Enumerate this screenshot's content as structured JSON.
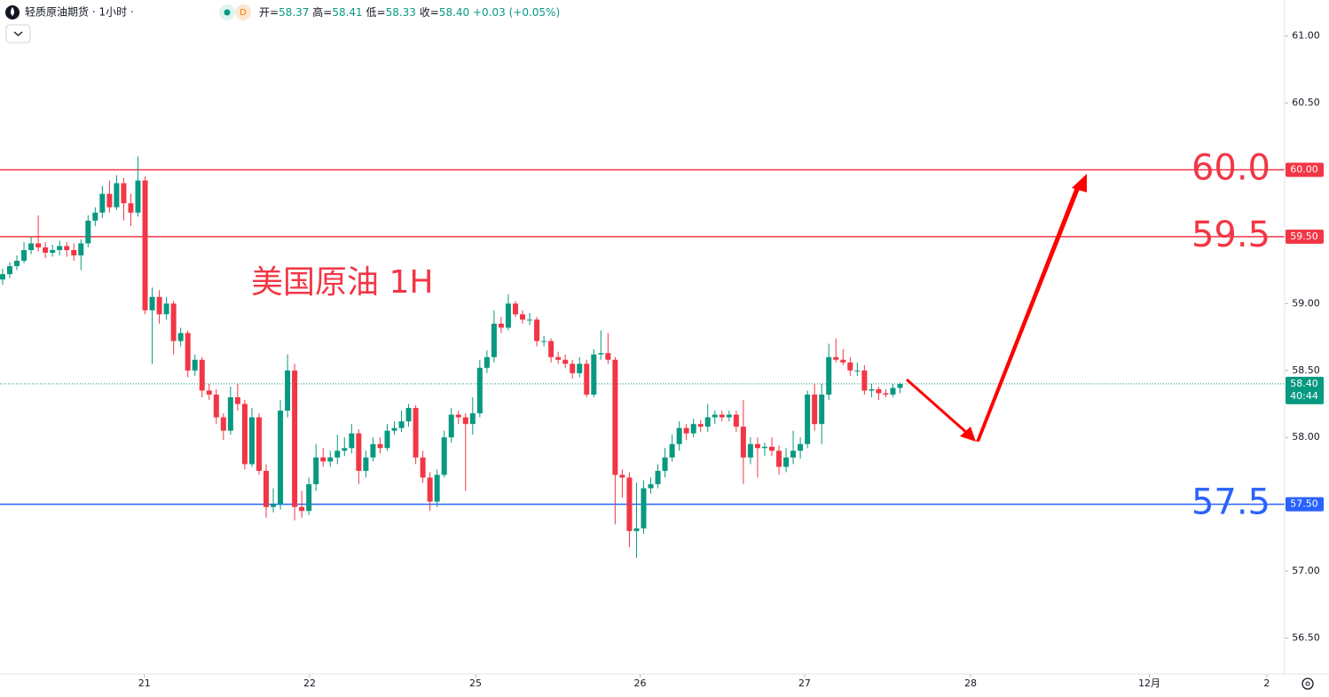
{
  "header": {
    "title": "轻质原油期货 · 1小时 ·",
    "badge": "D",
    "open_label": "开=",
    "open": "58.37",
    "high_label": "高=",
    "high": "58.41",
    "low_label": "低=",
    "low": "58.33",
    "close_label": "收=",
    "close": "58.40",
    "change": "+0.03 (+0.05%)"
  },
  "chart_data": {
    "type": "candlestick",
    "annotation": "美国原油 1H",
    "up_color": "#089981",
    "down_color": "#f23645",
    "ylim": [
      56.232,
      61.269
    ],
    "yticks": [
      {
        "value": 61,
        "label": "61.00"
      },
      {
        "value": 60.5,
        "label": "60.50"
      },
      {
        "value": 59,
        "label": "59.00"
      },
      {
        "value": 58.5,
        "label": "58.50"
      },
      {
        "value": 58,
        "label": "58.00"
      },
      {
        "value": 57,
        "label": "57.00"
      },
      {
        "value": 56.5,
        "label": "56.50"
      }
    ],
    "xlim": [
      -0.37,
      180
    ],
    "xticks": [
      {
        "value": 19.9,
        "label": "21"
      },
      {
        "value": 43.1,
        "label": "22"
      },
      {
        "value": 66.4,
        "label": "25"
      },
      {
        "value": 89.5,
        "label": "26"
      },
      {
        "value": 112.6,
        "label": "27"
      },
      {
        "value": 135.9,
        "label": "28"
      },
      {
        "value": 161,
        "label": "12月"
      },
      {
        "value": 177.5,
        "label": "2"
      }
    ],
    "levels": [
      {
        "value": 60,
        "label": "60.0",
        "axis_label": "60.00",
        "color": "#f23645"
      },
      {
        "value": 59.5,
        "label": "59.5",
        "axis_label": "59.50",
        "color": "#f23645"
      },
      {
        "value": 57.5,
        "label": "57.5",
        "axis_label": "57.50",
        "color": "#2962ff"
      }
    ],
    "last_price": {
      "value": 58.4,
      "label": "58.40",
      "countdown": "40:44",
      "color": "#089981"
    },
    "ohlc": [
      [
        59.18,
        59.26,
        59.14,
        59.22
      ],
      [
        59.22,
        59.31,
        59.19,
        59.28
      ],
      [
        59.28,
        59.36,
        59.25,
        59.32
      ],
      [
        59.32,
        59.46,
        59.3,
        59.4
      ],
      [
        59.4,
        59.5,
        59.37,
        59.45
      ],
      [
        59.45,
        59.66,
        59.39,
        59.42
      ],
      [
        59.42,
        59.46,
        59.34,
        59.38
      ],
      [
        59.38,
        59.44,
        59.35,
        59.4
      ],
      [
        59.4,
        59.47,
        59.36,
        59.43
      ],
      [
        59.43,
        59.46,
        59.35,
        59.4
      ],
      [
        59.4,
        59.45,
        59.32,
        59.36
      ],
      [
        59.36,
        59.48,
        59.25,
        59.45
      ],
      [
        59.45,
        59.66,
        59.42,
        59.62
      ],
      [
        59.62,
        59.72,
        59.58,
        59.68
      ],
      [
        59.68,
        59.88,
        59.64,
        59.82
      ],
      [
        59.82,
        59.92,
        59.68,
        59.72
      ],
      [
        59.72,
        59.96,
        59.7,
        59.9
      ],
      [
        59.9,
        59.94,
        59.62,
        59.75
      ],
      [
        59.75,
        59.82,
        59.58,
        59.68
      ],
      [
        59.68,
        60.1,
        59.65,
        59.92
      ],
      [
        59.92,
        59.95,
        58.92,
        58.95
      ],
      [
        58.95,
        59.12,
        58.55,
        59.05
      ],
      [
        59.05,
        59.1,
        58.85,
        58.92
      ],
      [
        58.92,
        59.05,
        58.88,
        59
      ],
      [
        59,
        59.02,
        58.62,
        58.72
      ],
      [
        58.72,
        58.82,
        58.68,
        58.78
      ],
      [
        58.78,
        58.8,
        58.45,
        58.5
      ],
      [
        58.5,
        58.62,
        58.46,
        58.58
      ],
      [
        58.58,
        58.6,
        58.3,
        58.35
      ],
      [
        58.35,
        58.4,
        58.28,
        58.32
      ],
      [
        58.32,
        58.36,
        58.1,
        58.15
      ],
      [
        58.15,
        58.18,
        57.98,
        58.05
      ],
      [
        58.05,
        58.38,
        58.02,
        58.3
      ],
      [
        58.3,
        58.4,
        58.2,
        58.25
      ],
      [
        58.25,
        58.28,
        57.76,
        57.8
      ],
      [
        57.8,
        58.22,
        57.78,
        58.15
      ],
      [
        58.15,
        58.18,
        57.72,
        57.75
      ],
      [
        57.75,
        57.8,
        57.4,
        57.48
      ],
      [
        57.48,
        57.62,
        57.44,
        57.5
      ],
      [
        57.5,
        58.28,
        57.46,
        58.2
      ],
      [
        58.2,
        58.62,
        58.15,
        58.5
      ],
      [
        58.5,
        58.55,
        57.38,
        57.48
      ],
      [
        57.48,
        57.6,
        57.4,
        57.45
      ],
      [
        57.45,
        57.7,
        57.42,
        57.65
      ],
      [
        57.65,
        57.95,
        57.6,
        57.85
      ],
      [
        57.85,
        57.92,
        57.78,
        57.82
      ],
      [
        57.82,
        57.9,
        57.78,
        57.85
      ],
      [
        57.85,
        58.02,
        57.8,
        57.9
      ],
      [
        57.9,
        58,
        57.86,
        57.92
      ],
      [
        57.92,
        58.1,
        57.88,
        58.03
      ],
      [
        58.03,
        58.06,
        57.65,
        57.75
      ],
      [
        57.75,
        57.9,
        57.7,
        57.85
      ],
      [
        57.85,
        58,
        57.82,
        57.95
      ],
      [
        57.95,
        58,
        57.88,
        57.92
      ],
      [
        57.92,
        58.1,
        57.9,
        58.05
      ],
      [
        58.05,
        58.12,
        58.02,
        58.07
      ],
      [
        58.07,
        58.2,
        58.04,
        58.12
      ],
      [
        58.12,
        58.25,
        58.08,
        58.22
      ],
      [
        58.22,
        58.24,
        57.8,
        57.85
      ],
      [
        57.85,
        57.9,
        57.66,
        57.7
      ],
      [
        57.7,
        57.74,
        57.45,
        57.52
      ],
      [
        57.52,
        57.76,
        57.48,
        57.72
      ],
      [
        57.72,
        58.05,
        57.7,
        58
      ],
      [
        58,
        58.22,
        57.96,
        58.17
      ],
      [
        58.17,
        58.2,
        58.1,
        58.15
      ],
      [
        58.15,
        58.18,
        57.6,
        58.1
      ],
      [
        58.1,
        58.3,
        58.02,
        58.18
      ],
      [
        58.18,
        58.58,
        58.15,
        58.52
      ],
      [
        58.52,
        58.65,
        58.48,
        58.6
      ],
      [
        58.6,
        58.95,
        58.56,
        58.85
      ],
      [
        58.85,
        58.9,
        58.78,
        58.82
      ],
      [
        58.82,
        59.07,
        58.8,
        59
      ],
      [
        59,
        59.02,
        58.9,
        58.92
      ],
      [
        58.92,
        58.95,
        58.85,
        58.88
      ],
      [
        58.88,
        58.93,
        58.84,
        58.88
      ],
      [
        58.88,
        58.9,
        58.68,
        58.72
      ],
      [
        58.72,
        58.76,
        58.68,
        58.72
      ],
      [
        58.72,
        58.74,
        58.56,
        58.6
      ],
      [
        58.6,
        58.64,
        58.55,
        58.58
      ],
      [
        58.58,
        58.62,
        58.52,
        58.55
      ],
      [
        58.55,
        58.58,
        58.44,
        58.48
      ],
      [
        58.48,
        58.6,
        58.45,
        58.55
      ],
      [
        58.55,
        58.58,
        58.3,
        58.32
      ],
      [
        58.32,
        58.66,
        58.3,
        58.62
      ],
      [
        58.62,
        58.8,
        58.58,
        58.63
      ],
      [
        58.63,
        58.78,
        58.55,
        58.58
      ],
      [
        58.58,
        58.6,
        57.35,
        57.72
      ],
      [
        57.72,
        57.76,
        57.55,
        57.7
      ],
      [
        57.7,
        57.74,
        57.18,
        57.3
      ],
      [
        57.3,
        57.66,
        57.1,
        57.32
      ],
      [
        57.32,
        57.68,
        57.28,
        57.62
      ],
      [
        57.62,
        57.7,
        57.58,
        57.65
      ],
      [
        57.65,
        57.8,
        57.62,
        57.75
      ],
      [
        57.75,
        57.92,
        57.7,
        57.85
      ],
      [
        57.85,
        58.02,
        57.82,
        57.95
      ],
      [
        57.95,
        58.12,
        57.9,
        58.07
      ],
      [
        58.07,
        58.1,
        57.98,
        58.03
      ],
      [
        58.03,
        58.14,
        58,
        58.1
      ],
      [
        58.1,
        58.13,
        58.04,
        58.08
      ],
      [
        58.08,
        58.25,
        58.04,
        58.15
      ],
      [
        58.15,
        58.2,
        58.1,
        58.17
      ],
      [
        58.17,
        58.2,
        58.12,
        58.15
      ],
      [
        58.15,
        58.2,
        58.12,
        58.17
      ],
      [
        58.17,
        58.2,
        58.04,
        58.08
      ],
      [
        58.08,
        58.28,
        57.65,
        57.85
      ],
      [
        57.85,
        58,
        57.8,
        57.95
      ],
      [
        57.95,
        58,
        57.7,
        57.92
      ],
      [
        57.92,
        57.96,
        57.86,
        57.93
      ],
      [
        57.93,
        58,
        57.86,
        57.9
      ],
      [
        57.9,
        57.94,
        57.72,
        57.78
      ],
      [
        57.78,
        57.92,
        57.74,
        57.85
      ],
      [
        57.85,
        58.05,
        57.8,
        57.9
      ],
      [
        57.9,
        58,
        57.84,
        57.95
      ],
      [
        57.95,
        58.35,
        57.92,
        58.32
      ],
      [
        58.32,
        58.4,
        58.05,
        58.1
      ],
      [
        58.1,
        58.4,
        57.95,
        58.32
      ],
      [
        58.32,
        58.7,
        58.28,
        58.6
      ],
      [
        58.6,
        58.74,
        58.56,
        58.58
      ],
      [
        58.58,
        58.66,
        58.54,
        58.56
      ],
      [
        58.56,
        58.6,
        58.46,
        58.5
      ],
      [
        58.5,
        58.56,
        58.46,
        58.5
      ],
      [
        58.5,
        58.54,
        58.32,
        58.35
      ],
      [
        58.35,
        58.4,
        58.3,
        58.36
      ],
      [
        58.36,
        58.38,
        58.28,
        58.33
      ],
      [
        58.33,
        58.36,
        58.3,
        58.32
      ],
      [
        58.32,
        58.4,
        58.3,
        58.37
      ],
      [
        58.37,
        58.41,
        58.33,
        58.4
      ]
    ]
  }
}
